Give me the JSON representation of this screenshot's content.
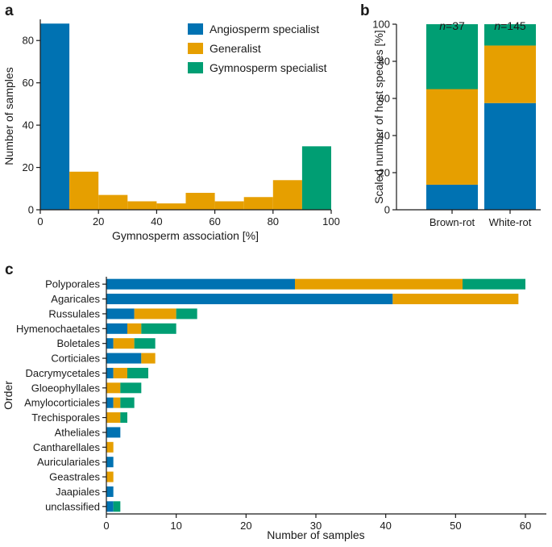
{
  "colors": {
    "angiosperm": "#0072b2",
    "generalist": "#e69f00",
    "gymnosperm": "#009e73",
    "axis": "#1a1a1a"
  },
  "chart_data": [
    {
      "panel": "a",
      "type": "bar",
      "subtype": "histogram",
      "xlabel": "Gymnosperm association [%]",
      "ylabel": "Number of samples",
      "xlim": [
        0,
        100
      ],
      "ylim": [
        0,
        90
      ],
      "xticks": [
        "0",
        "20",
        "40",
        "60",
        "80",
        "100"
      ],
      "yticks": [
        "0",
        "20",
        "40",
        "60",
        "80"
      ],
      "legend": [
        "Angiosperm specialist",
        "Generalist",
        "Gymnosperm specialist"
      ],
      "legend_position": "top-right",
      "bins": [
        {
          "start": 0,
          "end": 10,
          "value": 88,
          "category": "angiosperm"
        },
        {
          "start": 10,
          "end": 20,
          "value": 18,
          "category": "generalist"
        },
        {
          "start": 20,
          "end": 30,
          "value": 7,
          "category": "generalist"
        },
        {
          "start": 30,
          "end": 40,
          "value": 4,
          "category": "generalist"
        },
        {
          "start": 40,
          "end": 50,
          "value": 3,
          "category": "generalist"
        },
        {
          "start": 50,
          "end": 60,
          "value": 8,
          "category": "generalist"
        },
        {
          "start": 60,
          "end": 70,
          "value": 4,
          "category": "generalist"
        },
        {
          "start": 70,
          "end": 80,
          "value": 6,
          "category": "generalist"
        },
        {
          "start": 80,
          "end": 90,
          "value": 14,
          "category": "generalist"
        },
        {
          "start": 90,
          "end": 100,
          "value": 30,
          "category": "gymnosperm"
        }
      ]
    },
    {
      "panel": "b",
      "type": "bar",
      "subtype": "stacked",
      "ylabel": "Scaled number of host species [%]",
      "ylim": [
        0,
        100
      ],
      "yticks": [
        "0",
        "20",
        "40",
        "60",
        "80",
        "100"
      ],
      "categories": [
        "Brown-rot",
        "White-rot"
      ],
      "n_labels": [
        {
          "prefix": "n",
          "value": "=37"
        },
        {
          "prefix": "n",
          "value": "=145"
        }
      ],
      "series": [
        {
          "name": "Angiosperm specialist",
          "key": "angiosperm",
          "values": [
            13.5,
            57.5
          ]
        },
        {
          "name": "Generalist",
          "key": "generalist",
          "values": [
            51.5,
            31
          ]
        },
        {
          "name": "Gymnosperm specialist",
          "key": "gymnosperm",
          "values": [
            35,
            11.5
          ]
        }
      ]
    },
    {
      "panel": "c",
      "type": "bar",
      "subtype": "stacked-horizontal",
      "xlabel": "Number of samples",
      "ylabel": "Order",
      "xlim": [
        0,
        62
      ],
      "xticks": [
        "0",
        "10",
        "20",
        "30",
        "40",
        "50",
        "60"
      ],
      "categories": [
        "Polyporales",
        "Agaricales",
        "Russulales",
        "Hymenochaetales",
        "Boletales",
        "Corticiales",
        "Dacrymycetales",
        "Gloeophyllales",
        "Amylocorticiales",
        "Trechisporales",
        "Atheliales",
        "Cantharellales",
        "Auriculariales",
        "Geastrales",
        "Jaapiales",
        "unclassified"
      ],
      "series": [
        {
          "name": "Angiosperm specialist",
          "key": "angiosperm",
          "values": [
            27,
            41,
            4,
            3,
            1,
            5,
            1,
            0,
            1,
            0,
            2,
            0,
            1,
            0,
            1,
            1
          ]
        },
        {
          "name": "Generalist",
          "key": "generalist",
          "values": [
            24,
            18,
            6,
            2,
            3,
            2,
            2,
            2,
            1,
            2,
            0,
            1,
            0,
            1,
            0,
            0
          ]
        },
        {
          "name": "Gymnosperm specialist",
          "key": "gymnosperm",
          "values": [
            9,
            0,
            3,
            5,
            3,
            0,
            3,
            3,
            2,
            1,
            0,
            0,
            0,
            0,
            0,
            1
          ]
        }
      ]
    }
  ]
}
